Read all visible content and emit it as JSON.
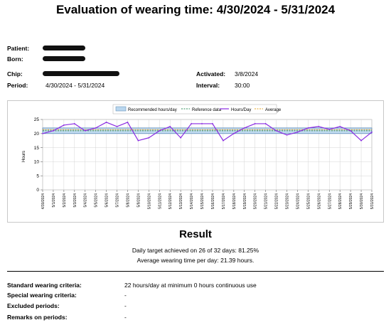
{
  "header": {
    "title": "Evaluation of wearing time: 4/30/2024 - 5/31/2024"
  },
  "info": {
    "patient_label": "Patient:",
    "born_label": "Born:",
    "chip_label": "Chip:",
    "period_label": "Period:",
    "period_value": "4/30/2024 - 5/31/2024",
    "activated_label": "Activated:",
    "activated_value": "3/8/2024",
    "interval_label": "Interval:",
    "interval_value": "30:00"
  },
  "legend": {
    "recommended": "Recommended hours/day",
    "reference": "Reference data",
    "hours": "Hours/Day",
    "average": "Average"
  },
  "colors": {
    "band": "#b9d6ee",
    "reference": "#2e8b57",
    "hours": "#8a2be2",
    "average": "#e0a020"
  },
  "chart_data": {
    "type": "line",
    "ylabel": "Hours",
    "ylim": [
      0,
      25
    ],
    "yticks": [
      0,
      5,
      10,
      15,
      20,
      25
    ],
    "recommended_band": [
      20,
      22
    ],
    "reference_value": 21,
    "average_value": 21.39,
    "categories": [
      "4/30/2024",
      "5/1/2024",
      "5/2/2024",
      "5/3/2024",
      "5/4/2024",
      "5/5/2024",
      "5/6/2024",
      "5/7/2024",
      "5/8/2024",
      "5/9/2024",
      "5/10/2024",
      "5/11/2024",
      "5/12/2024",
      "5/13/2024",
      "5/14/2024",
      "5/15/2024",
      "5/16/2024",
      "5/17/2024",
      "5/18/2024",
      "5/19/2024",
      "5/20/2024",
      "5/21/2024",
      "5/22/2024",
      "5/23/2024",
      "5/24/2024",
      "5/25/2024",
      "5/26/2024",
      "5/27/2024",
      "5/28/2024",
      "5/29/2024",
      "5/30/2024",
      "5/31/2024"
    ],
    "series": [
      {
        "name": "Hours/Day",
        "values": [
          20,
          21,
          23,
          23.5,
          21,
          22,
          24,
          22.5,
          24,
          17.5,
          18.5,
          21,
          22.5,
          18.5,
          23.5,
          23.5,
          23.5,
          17.5,
          20,
          22,
          23.5,
          23.5,
          21,
          19.5,
          20.5,
          22,
          22.5,
          21.5,
          22.5,
          21,
          17.5,
          20.5
        ]
      }
    ]
  },
  "result": {
    "title": "Result",
    "line1": "Daily target achieved on 26 of 32 days: 81.25%",
    "line2": "Average wearing time per day: 21.39 hours."
  },
  "criteria": {
    "standard_label": "Standard wearing criteria:",
    "standard_value": "22 hours/day at minimum 0 hours continuous use",
    "special_label": "Special wearing criteria:",
    "special_value": "-",
    "excluded_label": "Excluded periods:",
    "excluded_value": "-",
    "remarks_label": "Remarks on periods:",
    "remarks_value": "-"
  }
}
